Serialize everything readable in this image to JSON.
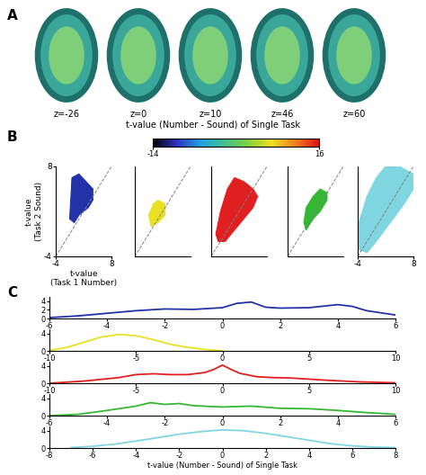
{
  "panel_labels": [
    "A",
    "B",
    "C"
  ],
  "brain_maps": {
    "type": "image",
    "slices": [
      "z=-26",
      "z=0",
      "z=10",
      "z=46",
      "z=60"
    ],
    "caption": "t-value (Number - Sound) of Single Task"
  },
  "colorbar": {
    "range": [
      -14,
      16
    ],
    "ticks": [
      -14,
      16
    ]
  },
  "chart_data": [
    {
      "type": "scatter",
      "color": "#2233aa",
      "xlim": [
        -4,
        8
      ],
      "ylim": [
        -4,
        8
      ],
      "xticks": [
        -4,
        8
      ],
      "yticks": [
        -4,
        8
      ],
      "xlabel": "t-value\n(Task 1 Number)",
      "ylabel": "t-value\n(Task 2 Sound)",
      "reference_line": [
        [
          -4,
          -4
        ],
        [
          8,
          8
        ]
      ],
      "outline": [
        [
          -1,
          1
        ],
        [
          -0.5,
          6.5
        ],
        [
          1,
          7
        ],
        [
          2.5,
          6
        ],
        [
          4,
          5
        ],
        [
          4,
          3.5
        ],
        [
          3,
          2.5
        ],
        [
          1,
          1.5
        ],
        [
          0,
          0.5
        ]
      ]
    },
    {
      "type": "scatter",
      "color": "#e8e020",
      "xlim": [
        -4,
        8
      ],
      "ylim": [
        -4,
        8
      ],
      "tick_labels": false,
      "reference_line": [
        [
          -4,
          -4
        ],
        [
          8,
          8
        ]
      ],
      "outline": [
        [
          -1,
          1.5
        ],
        [
          0,
          3
        ],
        [
          1,
          3.5
        ],
        [
          2.5,
          3
        ],
        [
          2.5,
          1.5
        ],
        [
          1,
          0.5
        ],
        [
          -0.5,
          0
        ]
      ]
    },
    {
      "type": "scatter",
      "color": "#e02020",
      "xlim": [
        -4,
        8
      ],
      "ylim": [
        -4,
        8
      ],
      "tick_labels": false,
      "reference_line": [
        [
          -4,
          -4
        ],
        [
          8,
          8
        ]
      ],
      "outline": [
        [
          -3,
          -1
        ],
        [
          -2,
          2
        ],
        [
          -0.5,
          5
        ],
        [
          1,
          6.5
        ],
        [
          3,
          6
        ],
        [
          5,
          5
        ],
        [
          6,
          4
        ],
        [
          5,
          2.5
        ],
        [
          3,
          1
        ],
        [
          1,
          -0.5
        ],
        [
          -1,
          -2
        ],
        [
          -2.5,
          -2
        ]
      ]
    },
    {
      "type": "scatter",
      "color": "#33b833",
      "xlim": [
        -4,
        8
      ],
      "ylim": [
        -4,
        8
      ],
      "tick_labels": false,
      "reference_line": [
        [
          -4,
          -4
        ],
        [
          8,
          8
        ]
      ],
      "outline": [
        [
          -0.5,
          0.5
        ],
        [
          0,
          2.5
        ],
        [
          1.5,
          4
        ],
        [
          3,
          5
        ],
        [
          4.5,
          4.5
        ],
        [
          4.5,
          3.5
        ],
        [
          3,
          2
        ],
        [
          1.5,
          1
        ],
        [
          0,
          -0.5
        ]
      ]
    },
    {
      "type": "scatter",
      "color": "#7fd6e0",
      "xlim": [
        -4,
        8
      ],
      "ylim": [
        -4,
        8
      ],
      "xticks": [
        -4,
        8
      ],
      "tick_labels": "x",
      "reference_line": [
        [
          -4,
          -4
        ],
        [
          8,
          8
        ]
      ],
      "outline": [
        [
          -4,
          -3
        ],
        [
          -4,
          0
        ],
        [
          -2,
          4
        ],
        [
          0,
          6.5
        ],
        [
          2,
          8
        ],
        [
          5,
          8
        ],
        [
          8,
          7
        ],
        [
          8,
          5
        ],
        [
          6,
          3
        ],
        [
          3,
          0.5
        ],
        [
          0,
          -2
        ],
        [
          -2,
          -3.5
        ]
      ]
    },
    {
      "type": "line",
      "color": "#2233aa",
      "xlim": [
        -6,
        6
      ],
      "ylim": [
        0,
        5
      ],
      "xticks": [
        -6,
        -4,
        -2,
        0,
        2,
        4,
        6
      ],
      "yticks": [
        0,
        2,
        4
      ],
      "x": [
        -6,
        -5,
        -4,
        -3,
        -2,
        -1,
        0,
        0.5,
        1,
        1.5,
        2,
        3,
        4,
        4.5,
        5,
        6
      ],
      "values": [
        0.2,
        0.6,
        1.2,
        1.8,
        2.2,
        2.1,
        2.5,
        3.5,
        3.8,
        2.6,
        2.4,
        2.5,
        3.2,
        2.8,
        1.8,
        0.8
      ]
    },
    {
      "type": "line",
      "color": "#e8e020",
      "xlim": [
        -10,
        10
      ],
      "ylim": [
        0,
        5
      ],
      "xticks": [
        -10,
        -5,
        0,
        5,
        10
      ],
      "yticks": [
        0,
        4
      ],
      "x": [
        -10,
        -9,
        -8,
        -7,
        -6,
        -5,
        -4,
        -3,
        -2,
        -1,
        0
      ],
      "values": [
        0.1,
        0.8,
        2,
        3.2,
        3.8,
        3.5,
        2.6,
        1.5,
        0.8,
        0.3,
        0
      ]
    },
    {
      "type": "line",
      "color": "#e02020",
      "xlim": [
        -10,
        10
      ],
      "ylim": [
        0,
        5
      ],
      "xticks": [
        -10,
        -5,
        0,
        5,
        10
      ],
      "yticks": [
        0,
        4
      ],
      "x": [
        -10,
        -8,
        -6,
        -5,
        -4,
        -3,
        -2,
        -1,
        -0.5,
        0,
        0.5,
        1,
        2,
        3,
        4,
        6,
        8,
        10
      ],
      "values": [
        0,
        0.5,
        1.3,
        2,
        2.2,
        2,
        2,
        2.5,
        3.2,
        4.2,
        3.2,
        2.3,
        1.5,
        1.3,
        1.2,
        0.7,
        0.3,
        0.1
      ]
    },
    {
      "type": "line",
      "color": "#33b833",
      "xlim": [
        -6,
        6
      ],
      "ylim": [
        0,
        5
      ],
      "xticks": [
        -6,
        -4,
        -2,
        0,
        2,
        4,
        6
      ],
      "yticks": [
        0,
        4
      ],
      "x": [
        -6,
        -5,
        -4,
        -3,
        -2.5,
        -2,
        -1.5,
        -1,
        0,
        1,
        2,
        3,
        4,
        5,
        6
      ],
      "values": [
        0,
        0.3,
        1.2,
        2.2,
        3,
        2.6,
        2.8,
        2.3,
        2,
        2.2,
        1.7,
        1.6,
        1.2,
        0.7,
        0.3
      ]
    },
    {
      "type": "line",
      "color": "#7fd6e0",
      "xlim": [
        -8,
        8
      ],
      "ylim": [
        0,
        5
      ],
      "xticks": [
        -8,
        -6,
        -4,
        -2,
        0,
        2,
        4,
        6,
        8
      ],
      "yticks": [
        0,
        4
      ],
      "xlabel": "t-value (Number - Sound) of Single Task",
      "x": [
        -7,
        -6,
        -5,
        -4,
        -3,
        -2,
        -1,
        0,
        1,
        2,
        3,
        4,
        5,
        6,
        7,
        8
      ],
      "values": [
        0.1,
        0.4,
        0.9,
        1.6,
        2.4,
        3.2,
        3.8,
        4.2,
        4,
        3.4,
        2.6,
        1.8,
        1,
        0.5,
        0.2,
        0.1
      ]
    }
  ]
}
